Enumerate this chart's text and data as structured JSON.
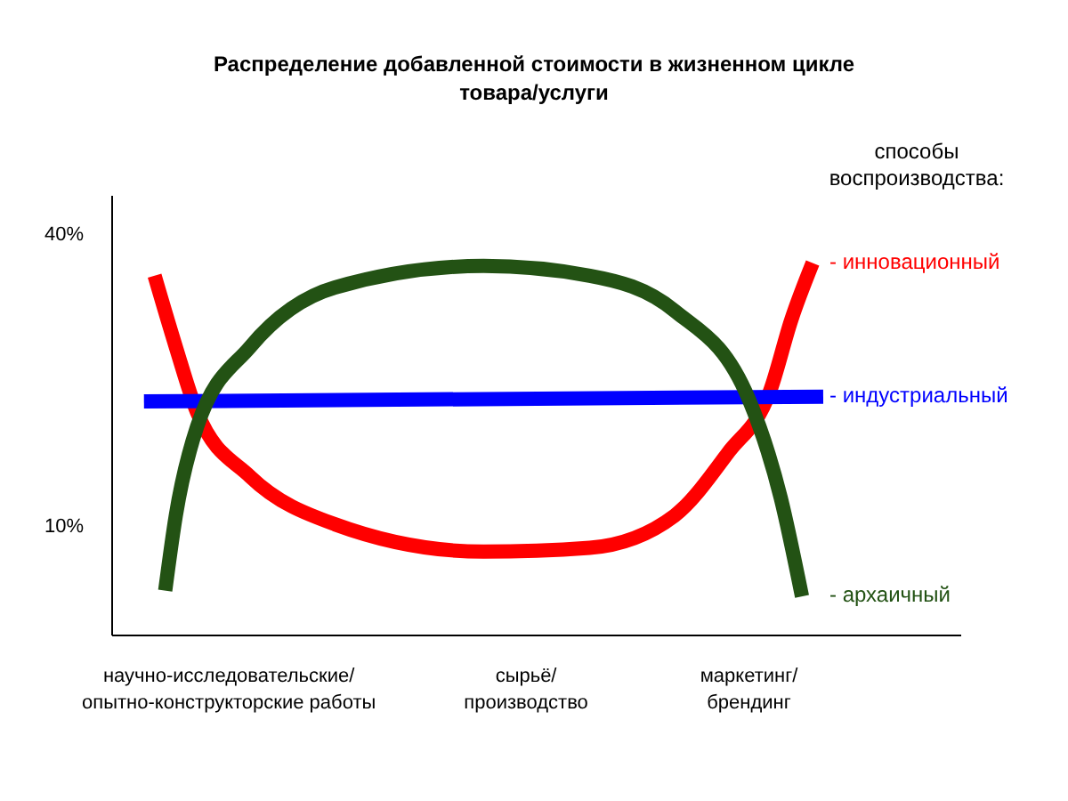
{
  "chart_data": {
    "type": "line",
    "title": "Распределение добавленной стоимости в жизненном цикле\nтовара/услуги",
    "legend_title": "способы\nвоспроизводства:",
    "legend": "right",
    "marker": "none",
    "line_style": "solid",
    "categories": [
      null,
      null,
      null,
      null,
      null,
      null,
      null,
      null,
      null,
      null,
      null,
      "научно-исследовательские/\nопытно-конструкторские работы",
      null,
      null,
      null,
      null,
      null,
      null,
      null,
      null,
      null,
      null,
      null,
      null,
      null,
      null,
      null,
      null,
      null,
      null,
      null,
      null,
      null,
      null,
      null,
      null,
      null,
      null,
      null,
      "сырьё/\nпроизводство",
      null,
      null,
      null,
      null,
      null,
      null,
      null,
      null,
      null,
      null,
      null,
      null,
      null,
      null,
      null,
      null,
      null,
      null,
      null,
      null,
      "маркетинг/\nбрендинг",
      null,
      null,
      null,
      null,
      null,
      null,
      null,
      null,
      null,
      null,
      null,
      null,
      null,
      null,
      null,
      null,
      null,
      null,
      null,
      null
    ],
    "ylim": [
      -1.3,
      43.8
    ],
    "yticks": [
      {
        "value": 40,
        "label": "40%"
      },
      {
        "value": 10,
        "label": "10%"
      }
    ],
    "series": [
      {
        "name": "- инновационный",
        "color": "#ff0000",
        "values": [
          null,
          null,
          null,
          null,
          35.6,
          null,
          28.3,
          null,
          21.6,
          null,
          null,
          null,
          null,
          15,
          null,
          null,
          null,
          null,
          null,
          null,
          null,
          10.1,
          null,
          null,
          null,
          null,
          null,
          null,
          null,
          null,
          null,
          null,
          null,
          null,
          null,
          7.3,
          null,
          null,
          null,
          null,
          null,
          null,
          null,
          null,
          null,
          7.7,
          null,
          null,
          null,
          null,
          null,
          null,
          null,
          11,
          null,
          null,
          null,
          null,
          17.4,
          null,
          null,
          null,
          23.8,
          null,
          31.1,
          null,
          36.9,
          null,
          null,
          null,
          null,
          null,
          null,
          null,
          null,
          null,
          null,
          null,
          null,
          null,
          null
        ]
      },
      {
        "name": "- индустриальный",
        "color": "#0000ff",
        "values": [
          null,
          null,
          null,
          22.7,
          null,
          null,
          null,
          null,
          null,
          null,
          null,
          null,
          null,
          null,
          null,
          null,
          null,
          null,
          null,
          null,
          null,
          null,
          null,
          null,
          null,
          null,
          null,
          null,
          null,
          null,
          null,
          null,
          null,
          null,
          null,
          null,
          null,
          null,
          null,
          null,
          null,
          null,
          null,
          null,
          null,
          null,
          null,
          null,
          null,
          null,
          null,
          null,
          null,
          null,
          null,
          null,
          null,
          null,
          null,
          null,
          null,
          null,
          null,
          null,
          null,
          null,
          null,
          23.2,
          null,
          null,
          null,
          null,
          null,
          null,
          null,
          null,
          null,
          null,
          null,
          null,
          null
        ]
      },
      {
        "name": "- архаичный",
        "color": "#235214",
        "values": [
          null,
          null,
          null,
          null,
          null,
          3.3,
          11,
          null,
          20.1,
          null,
          null,
          null,
          null,
          28.3,
          null,
          null,
          null,
          null,
          null,
          null,
          null,
          34.4,
          null,
          null,
          null,
          null,
          null,
          null,
          null,
          null,
          null,
          null,
          null,
          null,
          null,
          36.6,
          null,
          null,
          null,
          null,
          null,
          null,
          null,
          null,
          null,
          35.6,
          null,
          null,
          null,
          null,
          null,
          null,
          null,
          32,
          null,
          null,
          null,
          null,
          null,
          null,
          22.9,
          null,
          null,
          12.8,
          null,
          2.7,
          null,
          null,
          null,
          null,
          null,
          null,
          null,
          null,
          null,
          null,
          null,
          null,
          null,
          null,
          null
        ]
      }
    ]
  }
}
